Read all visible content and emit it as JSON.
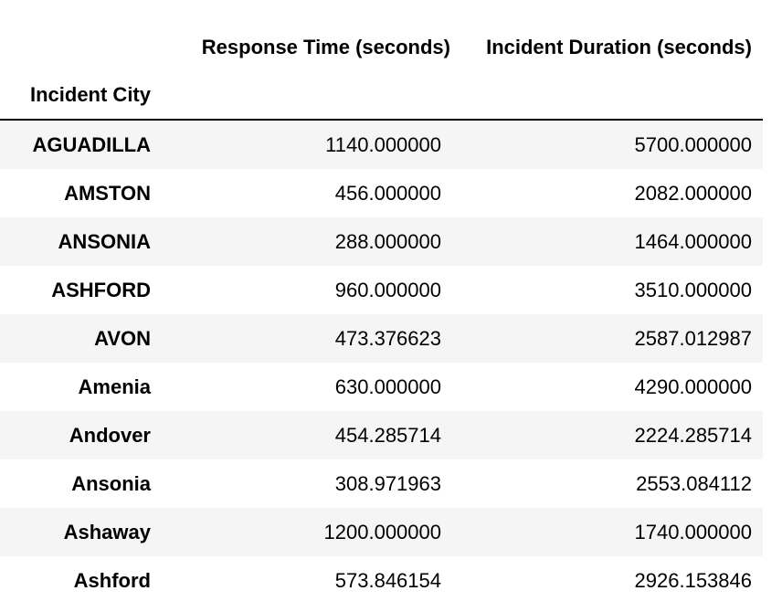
{
  "table": {
    "columns": [
      "Response Time (seconds)",
      "Incident Duration (seconds)"
    ],
    "index_name": "Incident City",
    "rows": [
      {
        "index": "AGUADILLA",
        "values": [
          "1140.000000",
          "5700.000000"
        ]
      },
      {
        "index": "AMSTON",
        "values": [
          "456.000000",
          "2082.000000"
        ]
      },
      {
        "index": "ANSONIA",
        "values": [
          "288.000000",
          "1464.000000"
        ]
      },
      {
        "index": "ASHFORD",
        "values": [
          "960.000000",
          "3510.000000"
        ]
      },
      {
        "index": "AVON",
        "values": [
          "473.376623",
          "2587.012987"
        ]
      },
      {
        "index": "Amenia",
        "values": [
          "630.000000",
          "4290.000000"
        ]
      },
      {
        "index": "Andover",
        "values": [
          "454.285714",
          "2224.285714"
        ]
      },
      {
        "index": "Ansonia",
        "values": [
          "308.971963",
          "2553.084112"
        ]
      },
      {
        "index": "Ashaway",
        "values": [
          "1200.000000",
          "1740.000000"
        ]
      },
      {
        "index": "Ashford",
        "values": [
          "573.846154",
          "2926.153846"
        ]
      }
    ]
  }
}
